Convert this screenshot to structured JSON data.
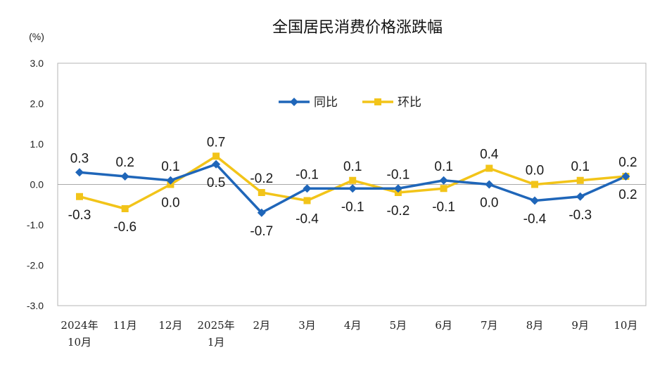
{
  "chart_data": {
    "type": "line",
    "title": "全国居民消费价格涨跌幅",
    "ylabel": "(%)",
    "ylim": [
      -3.0,
      3.0
    ],
    "yticks": [
      "3.0",
      "2.0",
      "1.0",
      "0.0",
      "-1.0",
      "-2.0",
      "-3.0"
    ],
    "grid": false,
    "legend_position": "top-center",
    "categories": [
      [
        "2024年",
        "10月"
      ],
      [
        "11月"
      ],
      [
        "12月"
      ],
      [
        "2025年",
        "1月"
      ],
      [
        "2月"
      ],
      [
        "3月"
      ],
      [
        "4月"
      ],
      [
        "5月"
      ],
      [
        "6月"
      ],
      [
        "7月"
      ],
      [
        "8月"
      ],
      [
        "9月"
      ],
      [
        "10月"
      ]
    ],
    "series": [
      {
        "name": "同比",
        "color": "#1f66b9",
        "marker": "diamond",
        "values": [
          0.3,
          0.2,
          0.1,
          0.5,
          -0.7,
          -0.1,
          -0.1,
          -0.1,
          0.1,
          0.0,
          -0.4,
          -0.3,
          0.2
        ],
        "labels": [
          "0.3",
          "0.2",
          "0.1",
          "0.5",
          "-0.7",
          "-0.1",
          "-0.1",
          "-0.1",
          "0.1",
          "0.0",
          "-0.4",
          "-0.3",
          "0.2"
        ]
      },
      {
        "name": "环比",
        "color": "#f2c419",
        "marker": "square",
        "values": [
          -0.3,
          -0.6,
          0.0,
          0.7,
          -0.2,
          -0.4,
          0.1,
          -0.2,
          -0.1,
          0.4,
          0.0,
          0.1,
          0.2
        ],
        "labels": [
          "-0.3",
          "-0.6",
          "0.0",
          "0.7",
          "-0.2",
          "-0.4",
          "0.1",
          "-0.2",
          "-0.1",
          "0.4",
          "0.0",
          "0.1",
          "0.2"
        ]
      }
    ]
  }
}
